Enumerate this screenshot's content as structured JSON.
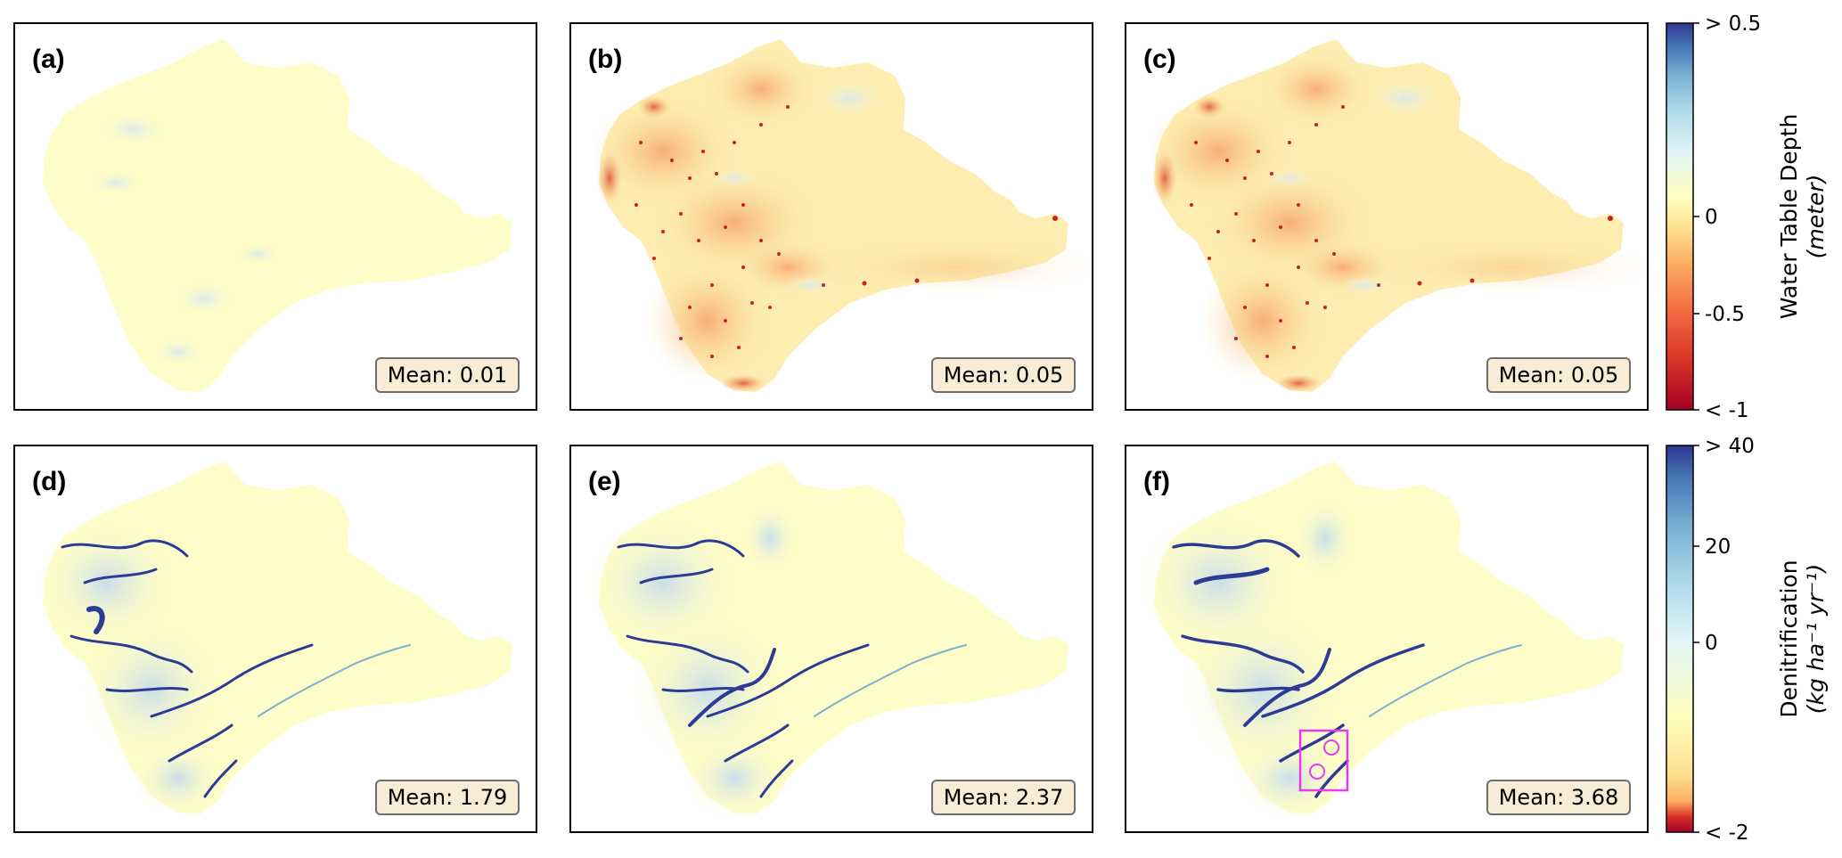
{
  "chart_data": {
    "type": "heatmap",
    "panels": [
      {
        "label": "(a)",
        "mean_label": "Mean: 0.01",
        "variable": "water_table_depth",
        "mean": 0.01
      },
      {
        "label": "(b)",
        "mean_label": "Mean: 0.05",
        "variable": "water_table_depth",
        "mean": 0.05
      },
      {
        "label": "(c)",
        "mean_label": "Mean: 0.05",
        "variable": "water_table_depth",
        "mean": 0.05
      },
      {
        "label": "(d)",
        "mean_label": "Mean: 1.79",
        "variable": "denitrification",
        "mean": 1.79
      },
      {
        "label": "(e)",
        "mean_label": "Mean: 2.37",
        "variable": "denitrification",
        "mean": 2.37
      },
      {
        "label": "(f)",
        "mean_label": "Mean: 3.68",
        "variable": "denitrification",
        "mean": 3.68
      }
    ],
    "colorbars": [
      {
        "title": "Water Table Depth",
        "unit": "(meter)",
        "colormap": "RdYlBu",
        "range": [
          -1,
          0.5
        ],
        "ticks": [
          {
            "value": 0.5,
            "label": "> 0.5"
          },
          {
            "value": 0,
            "label": "0"
          },
          {
            "value": -0.5,
            "label": "-0.5"
          },
          {
            "value": -1,
            "label": "< -1"
          }
        ]
      },
      {
        "title": "Denitrification",
        "unit": "(kg ha⁻¹ yr⁻¹)",
        "colormap": "RdYlBu",
        "range": [
          -2,
          40
        ],
        "ticks": [
          {
            "value": 40,
            "label": "> 40"
          },
          {
            "value": 20,
            "label": "20"
          },
          {
            "value": 0,
            "label": "0"
          },
          {
            "value": -2,
            "label": "< -2"
          }
        ]
      }
    ]
  },
  "colors": {
    "neutral": "#fefdc9",
    "light_blue": "#dcebf2",
    "mid_blue": "#7fb0d4",
    "dark_blue": "#2c3c96",
    "orange": "#f7b87a",
    "red": "#c72027",
    "highlight": "#e63be6"
  }
}
